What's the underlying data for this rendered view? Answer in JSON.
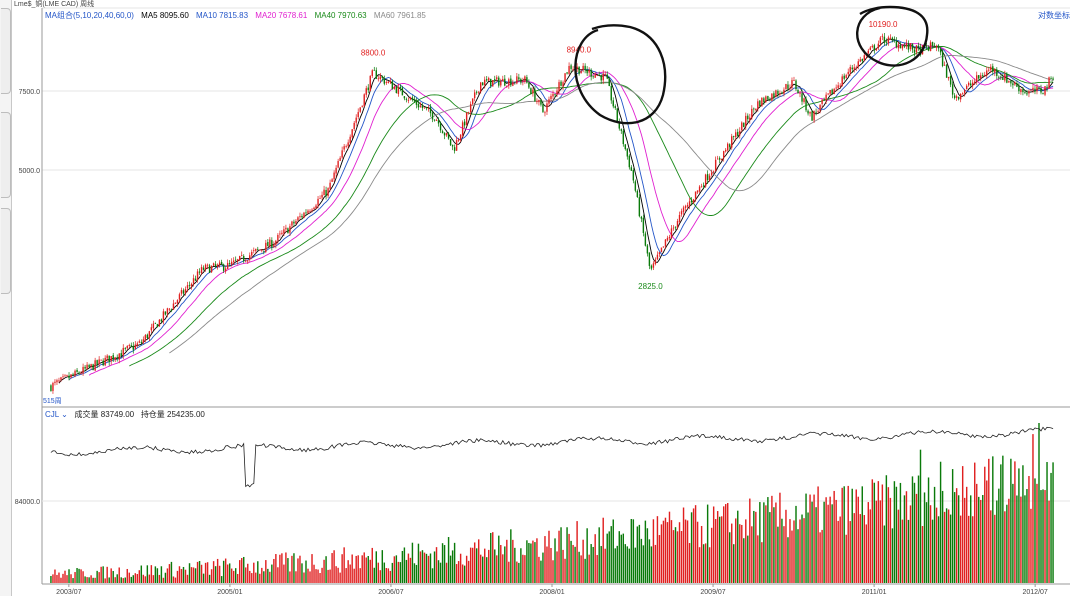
{
  "header": {
    "title": "Lme$_铜(LME CAD) 周线"
  },
  "legend": {
    "ma_group": "MA组合(5,10,20,40,60,0)",
    "items": [
      {
        "label": "MA5 8095.60",
        "color": "#000000"
      },
      {
        "label": "MA10 7815.83",
        "color": "#2456c8"
      },
      {
        "label": "MA20 7678.61",
        "color": "#e020d0"
      },
      {
        "label": "MA40 7970.63",
        "color": "#1a8a1a"
      },
      {
        "label": "MA60 7961.85",
        "color": "#8a8a8a"
      }
    ],
    "coord_button": "对数坐标"
  },
  "lower_panel": {
    "indicator": "CJL",
    "volume_label": "成交量 83749.00",
    "oi_label": "持仓量 254235.00",
    "axis_label": "84000.0"
  },
  "period_label": "515周",
  "chart_data": {
    "type": "candlestick",
    "scale": "log",
    "y_ticks": [
      {
        "value": 7500,
        "label": "7500.0"
      },
      {
        "value": 5000,
        "label": "5000.0"
      }
    ],
    "x_ticks": [
      "2003/07",
      "2005/01",
      "2006/07",
      "2008/01",
      "2009/07",
      "2011/01",
      "2012/07"
    ],
    "anchors": [
      {
        "date": "2003/05",
        "price": 1600
      },
      {
        "date": "2004/03",
        "price": 2000
      },
      {
        "date": "2004/10",
        "price": 2950
      },
      {
        "date": "2005/01",
        "price": 3000
      },
      {
        "date": "2005/06",
        "price": 3400
      },
      {
        "date": "2005/12",
        "price": 4450
      },
      {
        "date": "2006/05",
        "price": 8200
      },
      {
        "date": "2006/07",
        "price": 7700
      },
      {
        "date": "2006/12",
        "price": 6500
      },
      {
        "date": "2007/02",
        "price": 5500
      },
      {
        "date": "2007/05",
        "price": 7800
      },
      {
        "date": "2007/10",
        "price": 7900
      },
      {
        "date": "2007/12",
        "price": 6700
      },
      {
        "date": "2008/03",
        "price": 8500
      },
      {
        "date": "2008/07",
        "price": 8000
      },
      {
        "date": "2008/10",
        "price": 4800
      },
      {
        "date": "2008/12",
        "price": 2900
      },
      {
        "date": "2009/03",
        "price": 3800
      },
      {
        "date": "2009/07",
        "price": 5000
      },
      {
        "date": "2009/12",
        "price": 7000
      },
      {
        "date": "2010/04",
        "price": 7800
      },
      {
        "date": "2010/06",
        "price": 6500
      },
      {
        "date": "2010/10",
        "price": 8200
      },
      {
        "date": "2011/02",
        "price": 9800
      },
      {
        "date": "2011/06",
        "price": 9200
      },
      {
        "date": "2011/08",
        "price": 9500
      },
      {
        "date": "2011/10",
        "price": 7200
      },
      {
        "date": "2012/02",
        "price": 8400
      },
      {
        "date": "2012/06",
        "price": 7400
      },
      {
        "date": "2012/08",
        "price": 7500
      },
      {
        "date": "2012/09",
        "price": 8100
      }
    ],
    "annotations": [
      {
        "text": "8800.0",
        "date": "2006/05",
        "price": 8800,
        "color": "#e02020"
      },
      {
        "text": "8940.0",
        "date": "2008/04",
        "price": 8940,
        "color": "#e02020"
      },
      {
        "text": "2825.0",
        "date": "2008/12",
        "price": 2825,
        "color": "#1a8a1a"
      },
      {
        "text": "10190.0",
        "date": "2011/02",
        "price": 10190,
        "color": "#e02020"
      }
    ],
    "colors": {
      "up": "#e02020",
      "down": "#0a7a0a",
      "ma5": "#000000",
      "ma10": "#2456c8",
      "ma20": "#e020d0",
      "ma40": "#1a8a1a",
      "ma60": "#8a8a8a",
      "oi_line": "#222222"
    }
  }
}
